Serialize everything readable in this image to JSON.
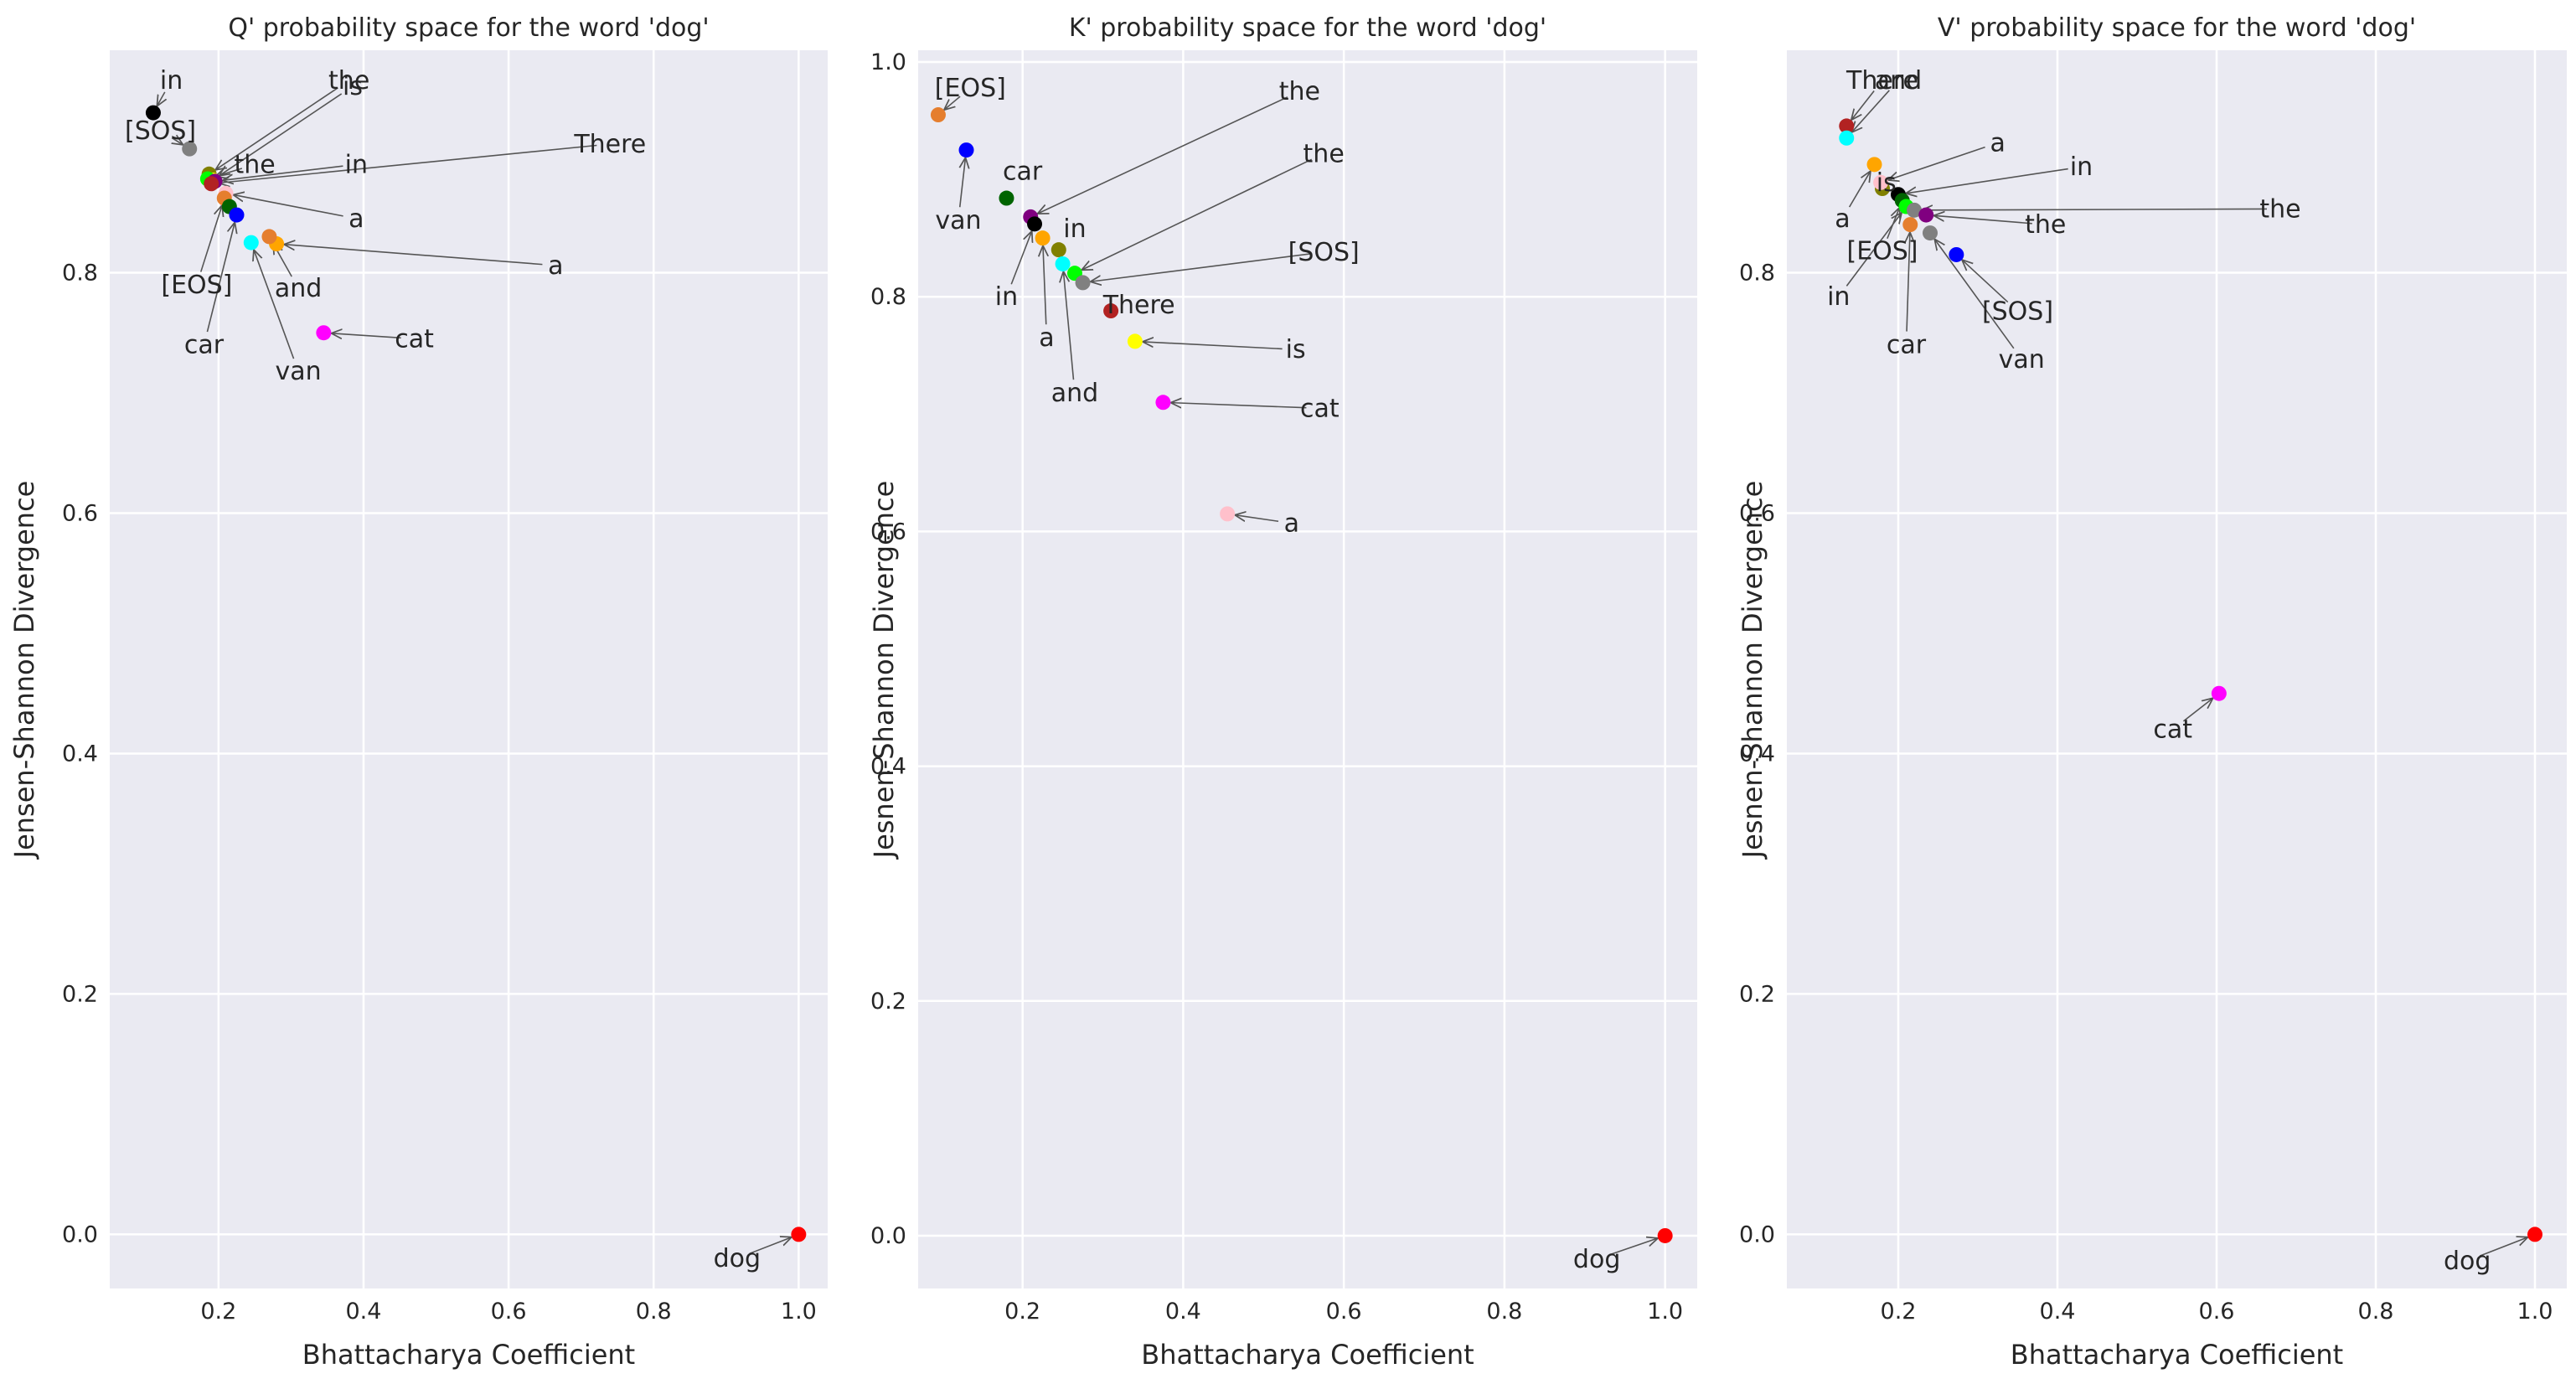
{
  "colors": {
    "panel_bg": "#EAEAF2",
    "grid": "#FFFFFF",
    "arrow": "#555555",
    "text": "#262626"
  },
  "chart_data": [
    {
      "type": "scatter",
      "title": "Q' probability space for the word 'dog'",
      "xlabel": "Bhattacharya Coefficient",
      "ylabel": "Jensen-Shannon Divergence",
      "xlim": [
        0.05,
        1.04
      ],
      "ylim": [
        -0.045,
        0.985
      ],
      "xticks": [
        0.2,
        0.4,
        0.6,
        0.8,
        1.0
      ],
      "xtick_labels": [
        "0.2",
        "0.4",
        "0.6",
        "0.8",
        "1.0"
      ],
      "yticks": [
        0.0,
        0.2,
        0.4,
        0.6,
        0.8
      ],
      "ytick_labels": [
        "0.0",
        "0.2",
        "0.4",
        "0.6",
        "0.8"
      ],
      "grid": true,
      "points": [
        {
          "label": "in",
          "x": 0.11,
          "y": 0.933,
          "color": "#000000",
          "tx": 0.135,
          "ty": 0.96
        },
        {
          "label": "[SOS]",
          "x": 0.16,
          "y": 0.903,
          "color": "#808080",
          "tx": 0.12,
          "ty": 0.918
        },
        {
          "label": "the",
          "x": 0.187,
          "y": 0.882,
          "color": "#808000",
          "tx": 0.38,
          "ty": 0.96
        },
        {
          "label": "is",
          "x": 0.192,
          "y": 0.877,
          "color": "#FFFF00",
          "tx": 0.385,
          "ty": 0.955
        },
        {
          "label": "the",
          "x": 0.185,
          "y": 0.878,
          "color": "#00FF00",
          "tx": 0.25,
          "ty": 0.89
        },
        {
          "label": "in",
          "x": 0.195,
          "y": 0.876,
          "color": "#800080",
          "tx": 0.39,
          "ty": 0.89
        },
        {
          "label": "There",
          "x": 0.19,
          "y": 0.874,
          "color": "#B22222",
          "tx": 0.74,
          "ty": 0.907
        },
        {
          "label": "a",
          "x": 0.21,
          "y": 0.866,
          "color": "#FFC0CB",
          "tx": 0.39,
          "ty": 0.845
        },
        {
          "label": "[EOS]",
          "x": 0.208,
          "y": 0.862,
          "color": "#E57E2E",
          "tx": 0.17,
          "ty": 0.79
        },
        {
          "label": "",
          "x": 0.215,
          "y": 0.855,
          "color": "#006400",
          "tx": null,
          "ty": null
        },
        {
          "label": "car",
          "x": 0.225,
          "y": 0.848,
          "color": "#0000FF",
          "tx": 0.18,
          "ty": 0.74
        },
        {
          "label": "van",
          "x": 0.245,
          "y": 0.825,
          "color": "#00FFFF",
          "tx": 0.31,
          "ty": 0.718
        },
        {
          "label": "a",
          "x": 0.28,
          "y": 0.824,
          "color": "#FFA500",
          "tx": 0.665,
          "ty": 0.806
        },
        {
          "label": "and",
          "x": 0.27,
          "y": 0.83,
          "color": "#E57E2E",
          "tx": 0.31,
          "ty": 0.787
        },
        {
          "label": "cat",
          "x": 0.345,
          "y": 0.75,
          "color": "#FF00FF",
          "tx": 0.47,
          "ty": 0.745
        },
        {
          "label": "dog",
          "x": 1.0,
          "y": 0.0,
          "color": "#FF0000",
          "tx": 0.915,
          "ty": -0.02
        }
      ]
    },
    {
      "type": "scatter",
      "title": "K' probability space for the word 'dog'",
      "xlabel": "Bhattacharya Coefficient",
      "ylabel": "Jesnen-Shannon Divergence",
      "xlim": [
        0.07,
        1.04
      ],
      "ylim": [
        -0.045,
        1.01
      ],
      "xticks": [
        0.2,
        0.4,
        0.6,
        0.8,
        1.0
      ],
      "xtick_labels": [
        "0.2",
        "0.4",
        "0.6",
        "0.8",
        "1.0"
      ],
      "yticks": [
        0.0,
        0.2,
        0.4,
        0.6,
        0.8,
        1.0
      ],
      "ytick_labels": [
        "0.0",
        "0.2",
        "0.4",
        "0.6",
        "0.8",
        "1.0"
      ],
      "grid": true,
      "points": [
        {
          "label": "[EOS]",
          "x": 0.095,
          "y": 0.955,
          "color": "#E57E2E",
          "tx": 0.135,
          "ty": 0.978
        },
        {
          "label": "van",
          "x": 0.13,
          "y": 0.925,
          "color": "#0000FF",
          "tx": 0.12,
          "ty": 0.865
        },
        {
          "label": "car",
          "x": 0.18,
          "y": 0.884,
          "color": "#006400",
          "tx": 0.2,
          "ty": 0.907
        },
        {
          "label": "the",
          "x": 0.21,
          "y": 0.868,
          "color": "#800080",
          "tx": 0.545,
          "ty": 0.975
        },
        {
          "label": "in",
          "x": 0.215,
          "y": 0.862,
          "color": "#000000",
          "tx": 0.18,
          "ty": 0.8
        },
        {
          "label": "a",
          "x": 0.225,
          "y": 0.85,
          "color": "#FFA500",
          "tx": 0.23,
          "ty": 0.765
        },
        {
          "label": "in",
          "x": 0.245,
          "y": 0.84,
          "color": "#808000",
          "tx": 0.265,
          "ty": 0.858
        },
        {
          "label": "and",
          "x": 0.25,
          "y": 0.828,
          "color": "#00FFFF",
          "tx": 0.265,
          "ty": 0.718
        },
        {
          "label": "the",
          "x": 0.265,
          "y": 0.82,
          "color": "#00FF00",
          "tx": 0.575,
          "ty": 0.922
        },
        {
          "label": "[SOS]",
          "x": 0.275,
          "y": 0.812,
          "color": "#808080",
          "tx": 0.575,
          "ty": 0.838
        },
        {
          "label": "There",
          "x": 0.31,
          "y": 0.788,
          "color": "#B22222",
          "tx": 0.345,
          "ty": 0.793
        },
        {
          "label": "is",
          "x": 0.34,
          "y": 0.762,
          "color": "#FFFF00",
          "tx": 0.54,
          "ty": 0.755
        },
        {
          "label": "cat",
          "x": 0.375,
          "y": 0.71,
          "color": "#FF00FF",
          "tx": 0.57,
          "ty": 0.705
        },
        {
          "label": "a",
          "x": 0.455,
          "y": 0.615,
          "color": "#FFC0CB",
          "tx": 0.535,
          "ty": 0.607
        },
        {
          "label": "dog",
          "x": 1.0,
          "y": 0.0,
          "color": "#FF0000",
          "tx": 0.915,
          "ty": -0.02
        }
      ]
    },
    {
      "type": "scatter",
      "title": "V' probability space for the word 'dog'",
      "xlabel": "Bhattacharya Coefficient",
      "ylabel": "Jesnen-Shannon Divergence",
      "xlim": [
        0.06,
        1.04
      ],
      "ylim": [
        -0.045,
        0.985
      ],
      "xticks": [
        0.2,
        0.4,
        0.6,
        0.8,
        1.0
      ],
      "xtick_labels": [
        "0.2",
        "0.4",
        "0.6",
        "0.8",
        "1.0"
      ],
      "yticks": [
        0.0,
        0.2,
        0.4,
        0.6,
        0.8
      ],
      "ytick_labels": [
        "0.0",
        "0.2",
        "0.4",
        "0.6",
        "0.8"
      ],
      "grid": true,
      "points": [
        {
          "label": "There",
          "x": 0.135,
          "y": 0.922,
          "color": "#B22222",
          "tx": 0.18,
          "ty": 0.96
        },
        {
          "label": "and",
          "x": 0.135,
          "y": 0.912,
          "color": "#00FFFF",
          "tx": 0.2,
          "ty": 0.96
        },
        {
          "label": "a",
          "x": 0.17,
          "y": 0.89,
          "color": "#FFA500",
          "tx": 0.13,
          "ty": 0.845
        },
        {
          "label": "is",
          "x": 0.18,
          "y": 0.87,
          "color": "#808000",
          "tx": 0.185,
          "ty": 0.875
        },
        {
          "label": "a",
          "x": 0.178,
          "y": 0.875,
          "color": "#FFC0CB",
          "tx": 0.325,
          "ty": 0.908
        },
        {
          "label": "in",
          "x": 0.2,
          "y": 0.865,
          "color": "#000000",
          "tx": 0.43,
          "ty": 0.888
        },
        {
          "label": "[EOS]",
          "x": 0.205,
          "y": 0.86,
          "color": "#006400",
          "tx": 0.18,
          "ty": 0.818
        },
        {
          "label": "in",
          "x": 0.21,
          "y": 0.855,
          "color": "#00FF00",
          "tx": 0.125,
          "ty": 0.78
        },
        {
          "label": "car",
          "x": 0.215,
          "y": 0.84,
          "color": "#E57E2E",
          "tx": 0.21,
          "ty": 0.74
        },
        {
          "label": "the",
          "x": 0.22,
          "y": 0.852,
          "color": "#808080",
          "tx": 0.68,
          "ty": 0.853
        },
        {
          "label": "the",
          "x": 0.235,
          "y": 0.848,
          "color": "#800080",
          "tx": 0.385,
          "ty": 0.84
        },
        {
          "label": "van",
          "x": 0.24,
          "y": 0.833,
          "color": "#808080",
          "tx": 0.355,
          "ty": 0.728
        },
        {
          "label": "[SOS]",
          "x": 0.273,
          "y": 0.815,
          "color": "#0000FF",
          "tx": 0.35,
          "ty": 0.768
        },
        {
          "label": "cat",
          "x": 0.603,
          "y": 0.45,
          "color": "#FF00FF",
          "tx": 0.545,
          "ty": 0.42
        },
        {
          "label": "dog",
          "x": 1.0,
          "y": 0.0,
          "color": "#FF0000",
          "tx": 0.915,
          "ty": -0.022
        }
      ]
    }
  ]
}
